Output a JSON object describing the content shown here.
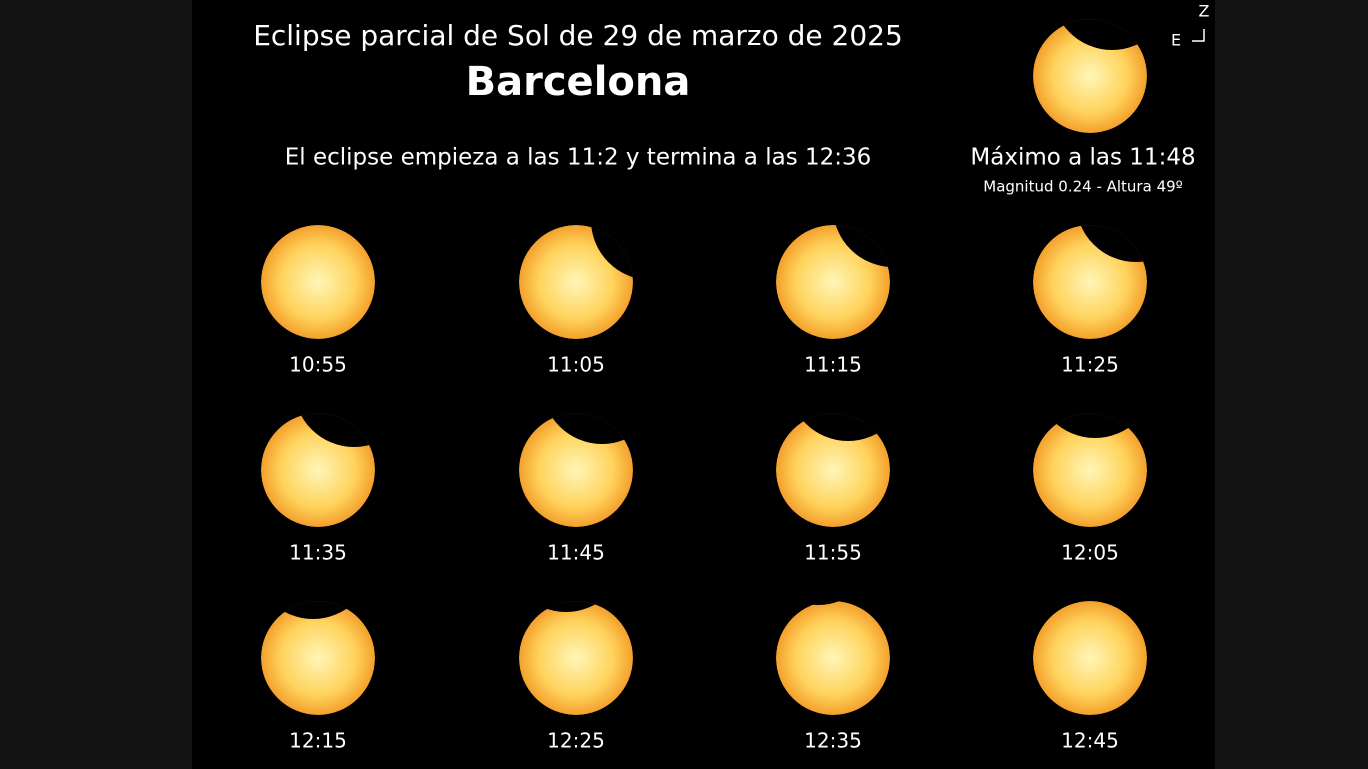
{
  "header": {
    "title": "Eclipse parcial de Sol de 29 de marzo de 2025",
    "city": "Barcelona",
    "subtitle": "El eclipse empieza a las 11:2 y termina a las 12:36"
  },
  "maximum": {
    "label": "Máximo a las 11:48",
    "details": "Magnitud 0.24 - Altura 49º"
  },
  "compass": {
    "north": "Z",
    "east": "E"
  },
  "frames": [
    {
      "time": "10:55"
    },
    {
      "time": "11:05"
    },
    {
      "time": "11:15"
    },
    {
      "time": "11:25"
    },
    {
      "time": "11:35"
    },
    {
      "time": "11:45"
    },
    {
      "time": "11:55"
    },
    {
      "time": "12:05"
    },
    {
      "time": "12:15"
    },
    {
      "time": "12:25"
    },
    {
      "time": "12:35"
    },
    {
      "time": "12:45"
    }
  ]
}
